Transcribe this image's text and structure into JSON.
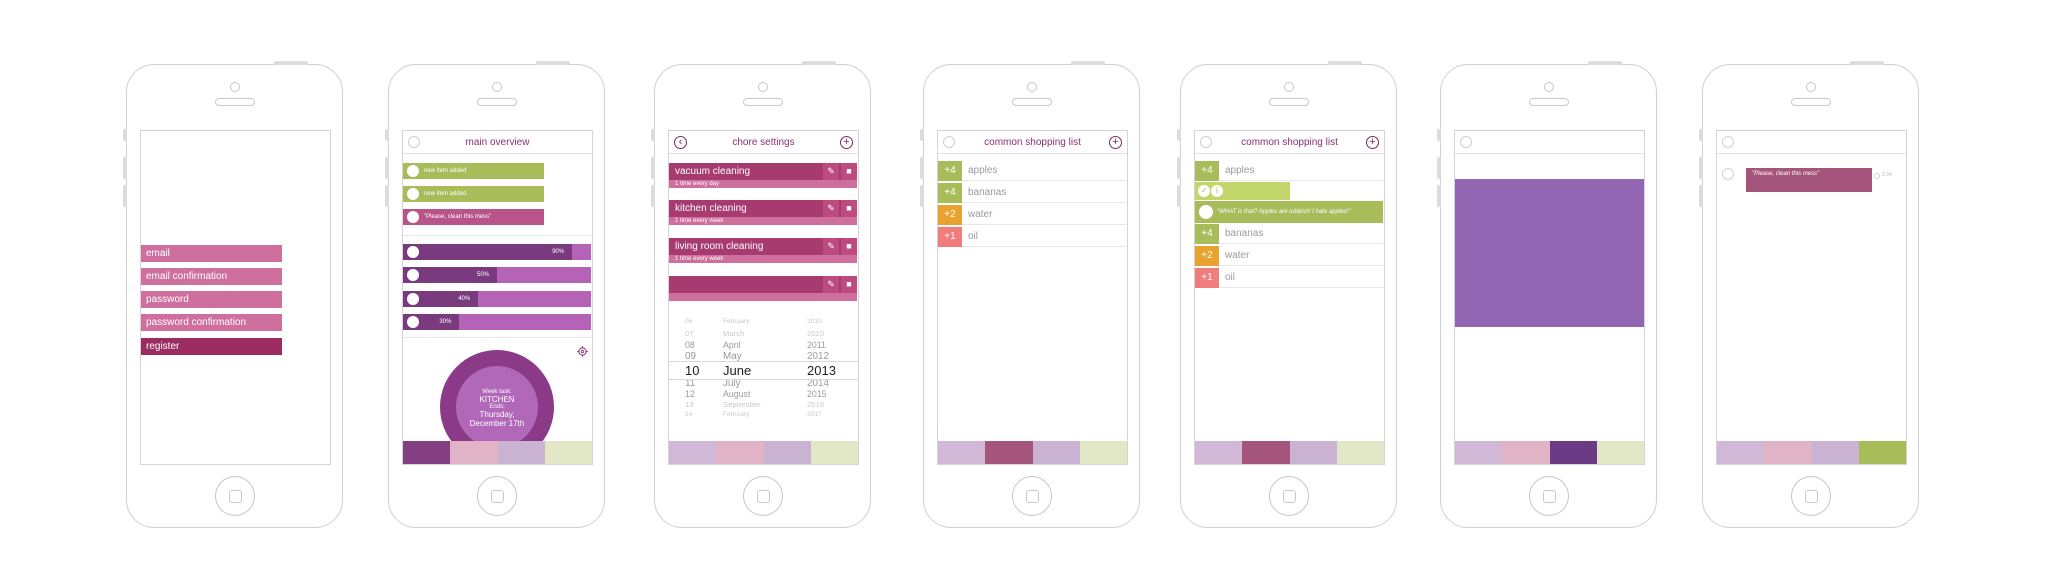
{
  "palette": {
    "purple_dark": "#6f2f6d",
    "magenta": "#a73a6e",
    "pink": "#cf6f9d",
    "lavender": "#9366b3",
    "green": "#a8bc5a",
    "orange": "#e8a22d",
    "salmon": "#f07c7c"
  },
  "login": {
    "fields": [
      "email",
      "email confirmation",
      "password",
      "password confirmation"
    ],
    "register_label": "register"
  },
  "overview": {
    "title": "main overview",
    "notifications": [
      "new item added",
      "new item added",
      "\"Please, clean this mess\""
    ],
    "progress": [
      {
        "label": "90%",
        "value": 0.9
      },
      {
        "label": "50%",
        "value": 0.5
      },
      {
        "label": "40%",
        "value": 0.4
      },
      {
        "label": "30%",
        "value": 0.3
      }
    ],
    "settings_icon": "gear-icon",
    "week_task": {
      "label": "Week task:",
      "task": "KITCHEN",
      "ends_label": "Ends:",
      "ends_day": "Thursday,",
      "ends_date": "December 17th"
    }
  },
  "chores": {
    "title": "chore settings",
    "back_icon": "back-arrow-icon",
    "add_icon": "plus-icon",
    "items": [
      {
        "name": "vacuum cleaning",
        "freq": "1 time every day"
      },
      {
        "name": "kitchen cleaning",
        "freq": "1 time every week"
      },
      {
        "name": "living room cleaning",
        "freq": "1 time every week"
      },
      {
        "name": "",
        "freq": ""
      }
    ],
    "picker": {
      "rows": [
        {
          "day": "06",
          "month": "February",
          "year": "2010"
        },
        {
          "day": "07",
          "month": "March",
          "year": "2010"
        },
        {
          "day": "08",
          "month": "April",
          "year": "2011"
        },
        {
          "day": "09",
          "month": "May",
          "year": "2012"
        },
        {
          "day": "10",
          "month": "June",
          "year": "2013"
        },
        {
          "day": "11",
          "month": "July",
          "year": "2014"
        },
        {
          "day": "12",
          "month": "August",
          "year": "2015"
        },
        {
          "day": "13",
          "month": "September",
          "year": "2016"
        },
        {
          "day": "14",
          "month": "February",
          "year": "2017"
        }
      ],
      "selected_index": 4
    }
  },
  "shopping": {
    "title": "common shopping list",
    "items": [
      {
        "qty": "+4",
        "name": "apples",
        "color": "#a8bc5a"
      },
      {
        "qty": "+4",
        "name": "bananas",
        "color": "#a8bc5a"
      },
      {
        "qty": "+2",
        "name": "water",
        "color": "#e8a22d"
      },
      {
        "qty": "+1",
        "name": "oil",
        "color": "#f07c7c"
      }
    ]
  },
  "shopping2": {
    "title": "common shopping list",
    "comment": "\"WHAT is that? Apples are rubbish! I hate apples!\"",
    "items": [
      {
        "qty": "+4",
        "name": "apples",
        "color": "#a8bc5a"
      },
      {
        "qty": "+4",
        "name": "bananas",
        "color": "#a8bc5a"
      },
      {
        "qty": "+2",
        "name": "water",
        "color": "#e8a22d"
      },
      {
        "qty": "+1",
        "name": "oil",
        "color": "#f07c7c"
      }
    ]
  },
  "message": {
    "text": "\"Please, clean this mess\"",
    "time": "2:34"
  }
}
